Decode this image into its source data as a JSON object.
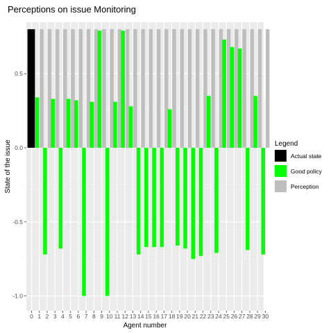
{
  "chart_data": {
    "type": "bar",
    "title": "Perceptions on issue Monitoring",
    "xlabel": "Agent number",
    "ylabel": "State of the issue",
    "ylim": [
      -1.0,
      0.8
    ],
    "yticks": [
      {
        "value": 0.5,
        "label": "0.5"
      },
      {
        "value": 0.0,
        "label": "0.0"
      },
      {
        "value": -0.5,
        "label": "-0.5"
      },
      {
        "value": -1.0,
        "label": "-1.0"
      }
    ],
    "categories": [
      "0",
      "1",
      "2",
      "3",
      "4",
      "5",
      "6",
      "7",
      "8",
      "9",
      "10",
      "11",
      "12",
      "13",
      "14",
      "15",
      "16",
      "17",
      "18",
      "19",
      "20",
      "21",
      "22",
      "23",
      "24",
      "25",
      "26",
      "27",
      "28",
      "29",
      "30"
    ],
    "grid": true,
    "legend_position": "right",
    "legend": {
      "title": "Legend",
      "items": [
        {
          "label": "Actual state",
          "color": "#000000"
        },
        {
          "label": "Good policy",
          "color": "#00ff00"
        },
        {
          "label": "Perception",
          "color": "#bebebe"
        }
      ]
    },
    "series": [
      {
        "name": "Actual state",
        "color": "#000000",
        "values": [
          0.8,
          null,
          null,
          null,
          null,
          null,
          null,
          null,
          null,
          null,
          null,
          null,
          null,
          null,
          null,
          null,
          null,
          null,
          null,
          null,
          null,
          null,
          null,
          null,
          null,
          null,
          null,
          null,
          null,
          null,
          null
        ]
      },
      {
        "name": "Perception",
        "color": "#bebebe",
        "values": [
          null,
          0.8,
          0.8,
          0.8,
          0.8,
          0.8,
          0.8,
          0.8,
          0.8,
          0.8,
          0.8,
          0.8,
          0.8,
          0.8,
          0.8,
          0.8,
          0.8,
          0.8,
          0.8,
          0.8,
          0.8,
          0.8,
          0.8,
          0.8,
          0.8,
          0.8,
          0.8,
          0.8,
          0.8,
          0.8,
          0.8
        ]
      },
      {
        "name": "Good policy",
        "color": "#00ff00",
        "values": [
          null,
          0.34,
          -0.72,
          0.33,
          -0.68,
          0.33,
          0.32,
          -1.0,
          0.31,
          0.79,
          -1.0,
          0.31,
          0.79,
          0.28,
          -0.72,
          -0.67,
          -0.67,
          -0.67,
          0.26,
          -0.66,
          -0.68,
          -0.75,
          -0.73,
          0.35,
          -0.71,
          0.73,
          0.68,
          0.67,
          -0.69,
          0.35,
          -0.72
        ]
      }
    ]
  }
}
